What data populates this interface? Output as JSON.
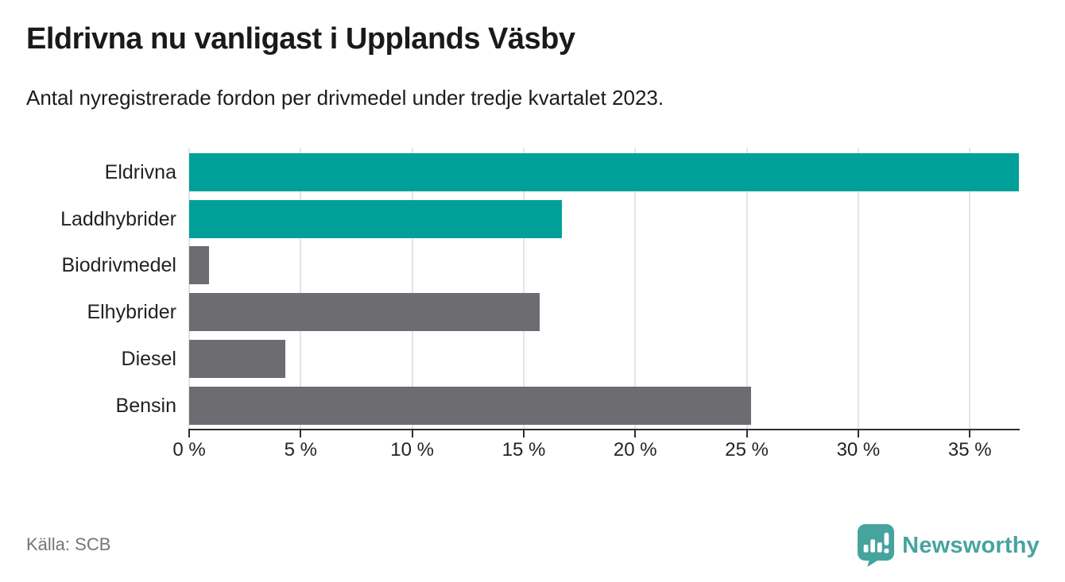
{
  "header": {
    "title": "Eldrivna nu vanligast i Upplands Väsby",
    "subtitle": "Antal nyregistrerade fordon per drivmedel under tredje kvartalet 2023."
  },
  "footer": {
    "source": "Källa: SCB",
    "logo_text": "Newsworthy"
  },
  "colors": {
    "highlight_bar": "#00A099",
    "default_bar": "#6C6C71",
    "gridline": "#e4e4e4",
    "axis": "#2e2e2e",
    "logo_teal": "#46a49f"
  },
  "chart_data": {
    "type": "bar",
    "orientation": "horizontal",
    "title": "Eldrivna nu vanligast i Upplands Väsby",
    "subtitle": "Antal nyregistrerade fordon per drivmedel under tredje kvartalet 2023.",
    "categories": [
      "Eldrivna",
      "Laddhybrider",
      "Biodrivmedel",
      "Elhybrider",
      "Diesel",
      "Bensin"
    ],
    "values": [
      37.2,
      16.7,
      0.9,
      15.7,
      4.3,
      25.2
    ],
    "unit": "%",
    "bar_colors": [
      "#00A099",
      "#00A099",
      "#6C6C71",
      "#6C6C71",
      "#6C6C71",
      "#6C6C71"
    ],
    "xlabel": "",
    "ylabel": "",
    "xlim": [
      0,
      37.2
    ],
    "x_tick_values": [
      0,
      5,
      10,
      15,
      20,
      25,
      30,
      35
    ],
    "x_tick_labels": [
      "0 %",
      "5 %",
      "10 %",
      "15 %",
      "20 %",
      "25 %",
      "30 %",
      "35 %"
    ],
    "grid": "vertical",
    "legend": "none"
  }
}
